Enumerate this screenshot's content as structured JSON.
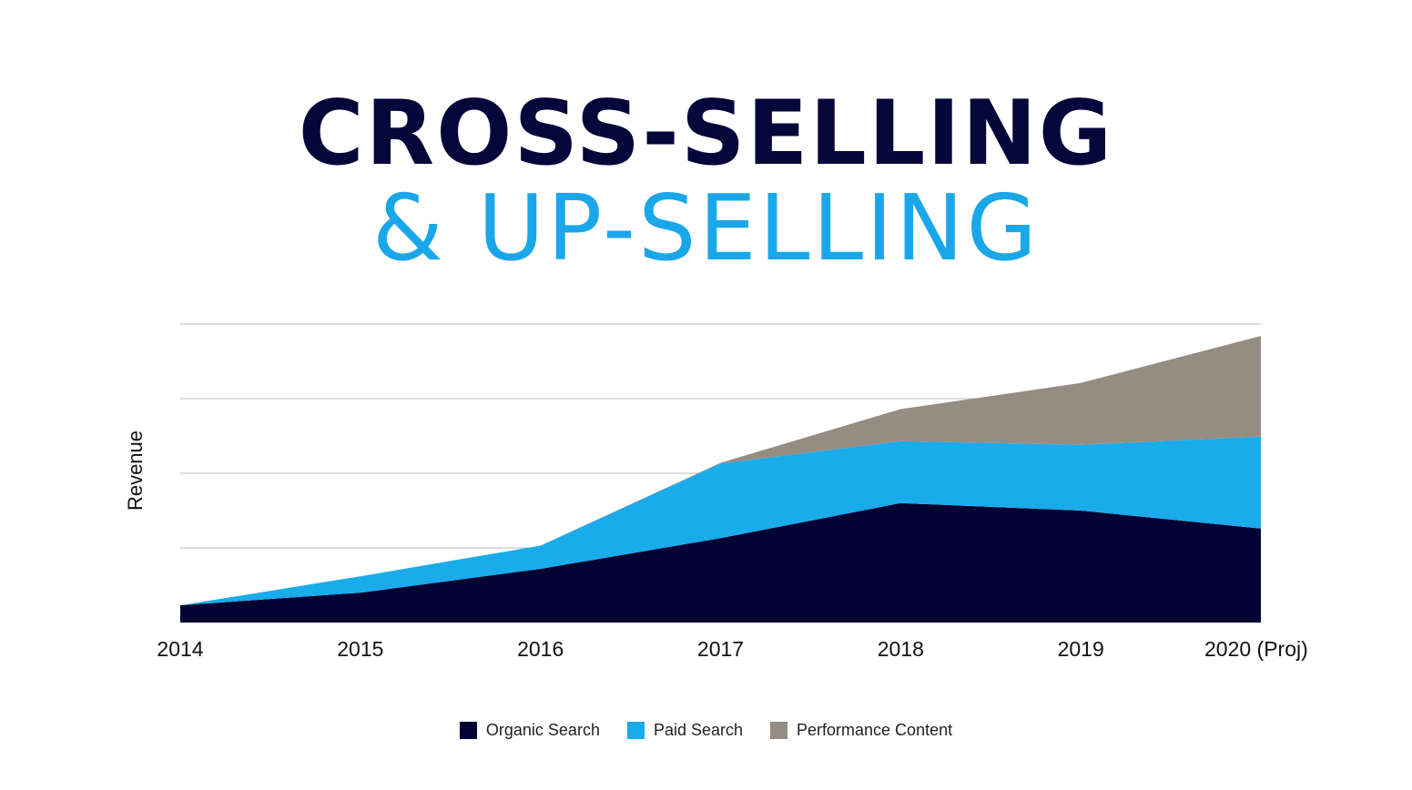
{
  "title": {
    "line1": "CROSS-SELLING",
    "line2": "& UP-SELLING"
  },
  "colors": {
    "title_dark": "#05063a",
    "title_accent": "#1aa7ea",
    "grid": "#bdbdbd"
  },
  "chart_data": {
    "type": "area",
    "stacked": true,
    "title": "",
    "xlabel": "",
    "ylabel": "Revenue",
    "x": [
      "2014",
      "2015",
      "2016",
      "2017",
      "2018",
      "2019",
      "2020 (Proj)"
    ],
    "ylim": [
      0,
      4
    ],
    "grid": true,
    "y_tick_labels_shown": false,
    "legend_position": "bottom",
    "series": [
      {
        "name": "Organic Search",
        "color": "#030333",
        "values": [
          0.23,
          0.4,
          0.72,
          1.13,
          1.6,
          1.5,
          1.26
        ]
      },
      {
        "name": "Paid Search",
        "color": "#1aabeb",
        "values": [
          0.0,
          0.22,
          0.31,
          1.0,
          0.83,
          0.88,
          1.23
        ]
      },
      {
        "name": "Performance Content",
        "color": "#958c82",
        "values": [
          0.0,
          0.0,
          0.0,
          0.01,
          0.43,
          0.83,
          1.35
        ]
      }
    ]
  }
}
